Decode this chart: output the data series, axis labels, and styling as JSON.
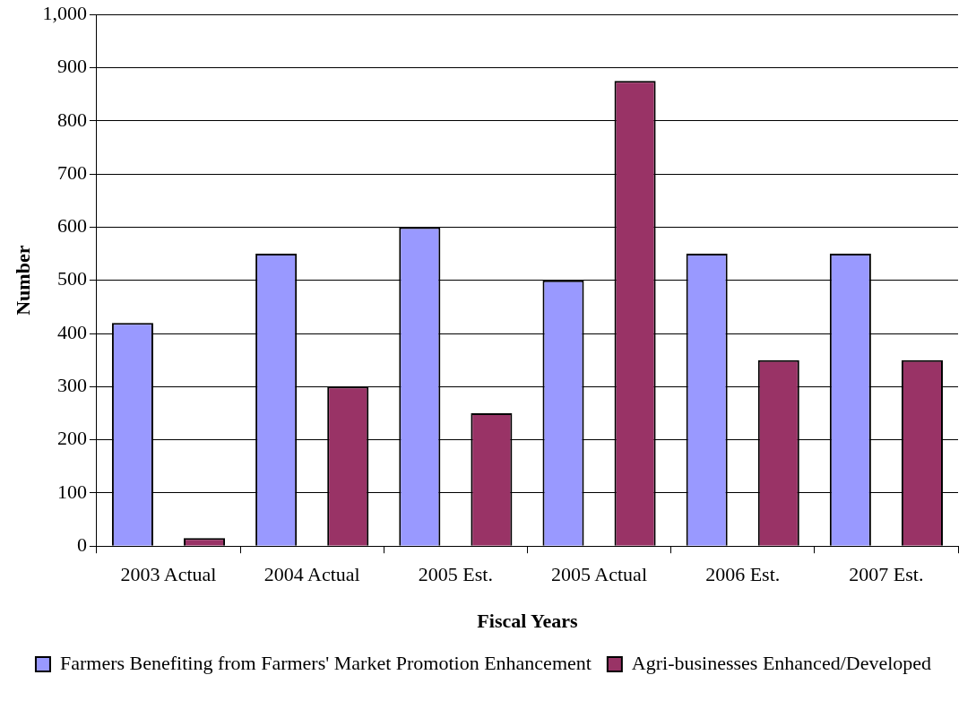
{
  "chart_data": {
    "type": "bar",
    "xlabel": "Fiscal Years",
    "ylabel": "Number",
    "categories": [
      "2003 Actual",
      "2004 Actual",
      "2005 Est.",
      "2005 Actual",
      "2006 Est.",
      "2007 Est."
    ],
    "series": [
      {
        "name": "Farmers Benefiting from Farmers' Market Promotion Enhancement",
        "color": "#9999ff",
        "values": [
          420,
          550,
          600,
          500,
          550,
          550
        ]
      },
      {
        "name": "Agri-businesses Enhanced/Developed",
        "color": "#993366",
        "values": [
          15,
          300,
          250,
          875,
          350,
          350
        ]
      }
    ],
    "ylim": [
      0,
      1000
    ],
    "yticks": [
      0,
      100,
      200,
      300,
      400,
      500,
      600,
      700,
      800,
      900,
      {
        "value": 1000,
        "label": "1,000"
      }
    ],
    "grid": "y",
    "legend": "bottom"
  }
}
